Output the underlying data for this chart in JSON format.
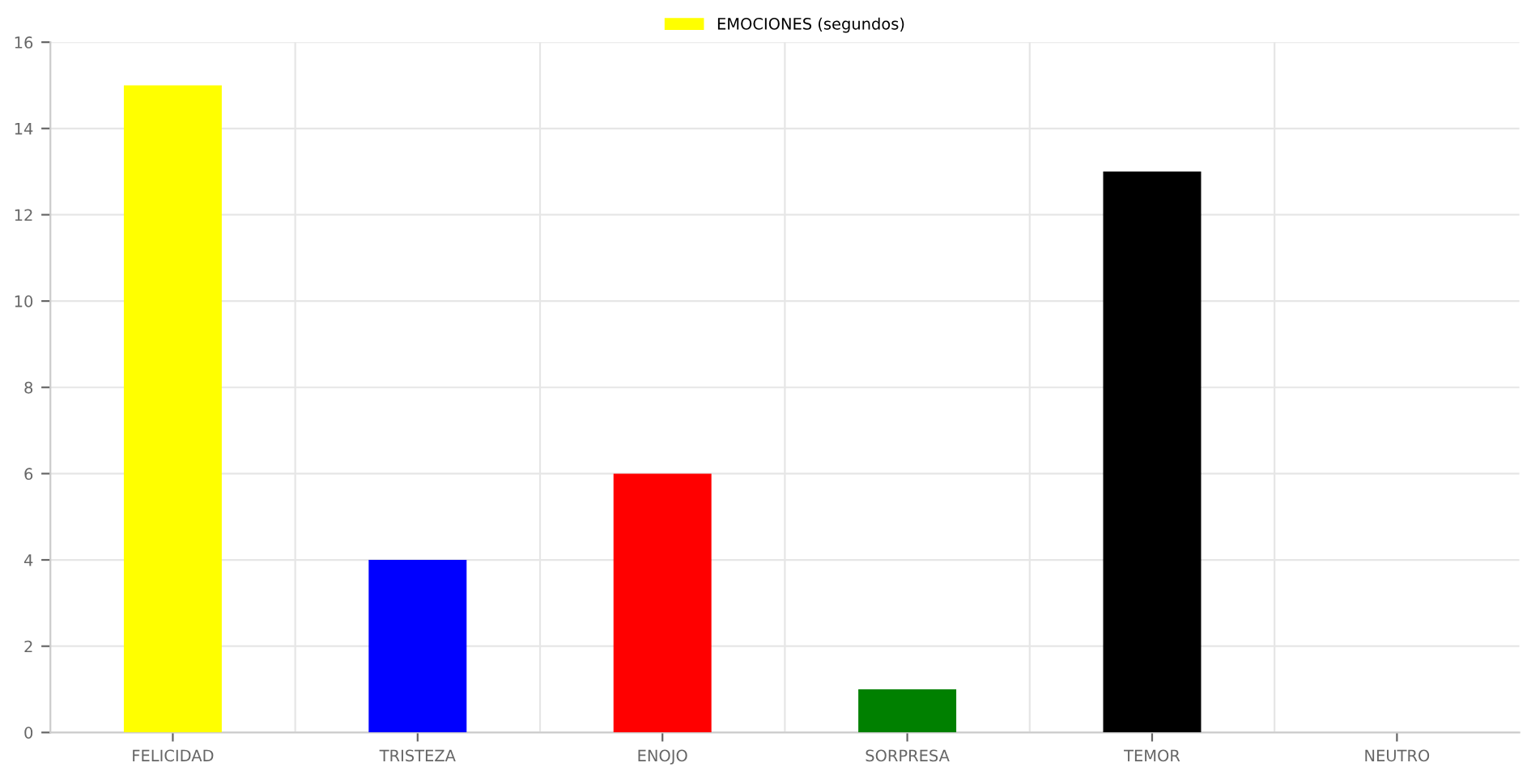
{
  "chart_data": {
    "type": "bar",
    "categories": [
      "FELICIDAD",
      "TRISTEZA",
      "ENOJO",
      "SORPRESA",
      "TEMOR",
      "NEUTRO"
    ],
    "series": [
      {
        "name": "EMOCIONES (segundos)",
        "color": "#ffff00",
        "colors": [
          "#ffff00",
          "#0000ff",
          "#ff0000",
          "#008000",
          "#000000",
          "#ffffff"
        ],
        "values": [
          15,
          4,
          6,
          1,
          13,
          0
        ]
      }
    ],
    "ylim": [
      0,
      16
    ],
    "yticks": [
      0,
      2,
      4,
      6,
      8,
      10,
      12,
      14,
      16
    ],
    "grid": true,
    "legend": "top"
  }
}
